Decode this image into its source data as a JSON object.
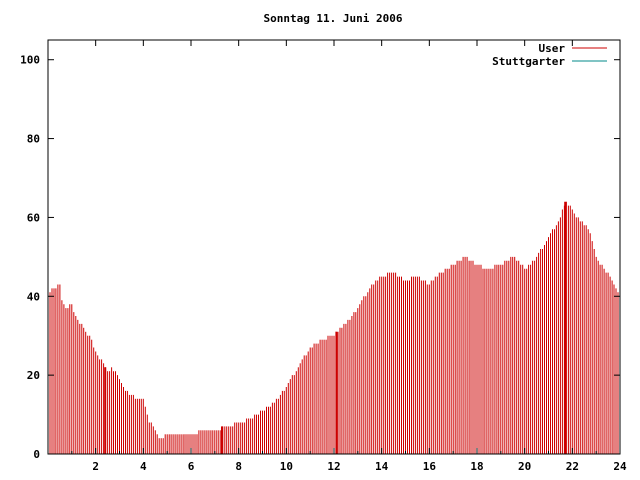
{
  "chart_data": {
    "type": "bar",
    "title": "Sonntag 11. Juni 2006",
    "xlabel": "",
    "ylabel": "",
    "xlim": [
      0,
      24
    ],
    "ylim": [
      0,
      105
    ],
    "xticks": [
      "2",
      "4",
      "6",
      "8",
      "10",
      "12",
      "14",
      "16",
      "18",
      "20",
      "22",
      "24"
    ],
    "yticks": [
      "0",
      "20",
      "40",
      "60",
      "80",
      "100"
    ],
    "grid": false,
    "legend_position": "top-right",
    "series": [
      {
        "name": "User",
        "color": "#cc0000"
      },
      {
        "name": "Stuttgarter",
        "color": "#008888"
      }
    ],
    "anchors": [
      [
        0.0,
        41
      ],
      [
        0.3,
        42
      ],
      [
        0.5,
        43
      ],
      [
        0.6,
        38
      ],
      [
        0.8,
        37
      ],
      [
        1.0,
        38
      ],
      [
        1.2,
        34
      ],
      [
        1.5,
        32
      ],
      [
        1.8,
        29
      ],
      [
        2.0,
        26
      ],
      [
        2.3,
        23
      ],
      [
        2.5,
        21
      ],
      [
        2.7,
        22
      ],
      [
        3.0,
        19
      ],
      [
        3.3,
        16
      ],
      [
        3.5,
        15
      ],
      [
        3.8,
        14
      ],
      [
        4.0,
        14
      ],
      [
        4.2,
        9
      ],
      [
        4.5,
        6
      ],
      [
        4.7,
        4
      ],
      [
        5.0,
        5
      ],
      [
        5.5,
        5
      ],
      [
        6.0,
        5
      ],
      [
        6.5,
        6
      ],
      [
        7.0,
        6
      ],
      [
        7.5,
        7
      ],
      [
        8.0,
        8
      ],
      [
        8.5,
        9
      ],
      [
        9.0,
        11
      ],
      [
        9.5,
        13
      ],
      [
        10.0,
        17
      ],
      [
        10.5,
        22
      ],
      [
        11.0,
        27
      ],
      [
        11.5,
        29
      ],
      [
        12.0,
        30
      ],
      [
        12.5,
        33
      ],
      [
        13.0,
        37
      ],
      [
        13.5,
        42
      ],
      [
        14.0,
        45
      ],
      [
        14.5,
        46
      ],
      [
        15.0,
        44
      ],
      [
        15.5,
        45
      ],
      [
        16.0,
        43
      ],
      [
        16.5,
        46
      ],
      [
        17.0,
        48
      ],
      [
        17.5,
        50
      ],
      [
        18.0,
        48
      ],
      [
        18.5,
        47
      ],
      [
        19.0,
        48
      ],
      [
        19.5,
        50
      ],
      [
        20.0,
        47
      ],
      [
        20.5,
        50
      ],
      [
        21.0,
        55
      ],
      [
        21.5,
        60
      ],
      [
        21.7,
        64
      ],
      [
        22.0,
        62
      ],
      [
        22.3,
        59
      ],
      [
        22.6,
        58
      ],
      [
        22.8,
        55
      ],
      [
        23.0,
        50
      ],
      [
        23.3,
        47
      ],
      [
        23.6,
        45
      ],
      [
        24.0,
        40
      ]
    ],
    "highlight_x": [
      2.4,
      7.3,
      12.1,
      21.7
    ]
  }
}
